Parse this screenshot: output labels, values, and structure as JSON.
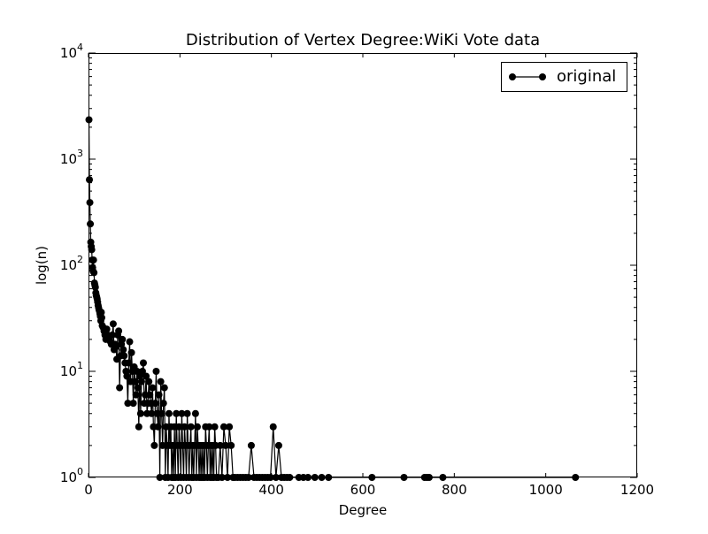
{
  "chart_data": {
    "type": "line",
    "title": "Distribution of Vertex Degree:WiKi Vote data",
    "xlabel": "Degree",
    "ylabel": "log(n)",
    "xlim": [
      0,
      1200
    ],
    "ylim": [
      1,
      10000
    ],
    "yscale": "log",
    "grid": false,
    "legend_position": "top-right",
    "x_ticks": [
      "0",
      "200",
      "400",
      "600",
      "800",
      "1000",
      "1200"
    ],
    "y_ticks": [
      {
        "base": "10",
        "exp": "0"
      },
      {
        "base": "10",
        "exp": "1"
      },
      {
        "base": "10",
        "exp": "2"
      },
      {
        "base": "10",
        "exp": "3"
      },
      {
        "base": "10",
        "exp": "4"
      }
    ],
    "series": [
      {
        "name": "original",
        "color": "#000000",
        "marker": "circle",
        "x": [
          1,
          2,
          3,
          4,
          5,
          6,
          7,
          8,
          9,
          10,
          11,
          12,
          13,
          14,
          15,
          16,
          17,
          18,
          19,
          20,
          21,
          22,
          23,
          24,
          25,
          26,
          27,
          28,
          29,
          30,
          32,
          34,
          36,
          38,
          40,
          42,
          44,
          46,
          48,
          50,
          52,
          54,
          56,
          58,
          60,
          62,
          64,
          66,
          68,
          70,
          72,
          74,
          76,
          78,
          80,
          82,
          84,
          86,
          88,
          90,
          92,
          94,
          96,
          98,
          100,
          102,
          104,
          106,
          108,
          110,
          112,
          114,
          116,
          118,
          120,
          122,
          124,
          126,
          128,
          130,
          132,
          134,
          136,
          138,
          140,
          142,
          144,
          146,
          148,
          150,
          152,
          154,
          156,
          158,
          160,
          162,
          164,
          166,
          168,
          170,
          172,
          174,
          176,
          178,
          180,
          182,
          184,
          186,
          188,
          190,
          192,
          194,
          196,
          198,
          200,
          202,
          204,
          206,
          208,
          210,
          212,
          214,
          216,
          218,
          220,
          222,
          224,
          226,
          228,
          230,
          232,
          234,
          236,
          238,
          240,
          242,
          244,
          246,
          248,
          250,
          252,
          254,
          256,
          258,
          260,
          262,
          264,
          266,
          268,
          270,
          272,
          274,
          276,
          278,
          280,
          284,
          288,
          292,
          296,
          300,
          304,
          308,
          312,
          316,
          320,
          326,
          332,
          338,
          344,
          350,
          356,
          362,
          368,
          374,
          380,
          386,
          392,
          398,
          404,
          410,
          416,
          422,
          428,
          434,
          440,
          460,
          470,
          480,
          495,
          510,
          525,
          620,
          690,
          735,
          740,
          745,
          775,
          1065
        ],
        "y": [
          2350,
          640,
          390,
          245,
          165,
          150,
          140,
          112,
          95,
          88,
          112,
          85,
          68,
          65,
          62,
          55,
          52,
          50,
          48,
          45,
          42,
          40,
          38,
          37,
          35,
          33,
          30,
          36,
          32,
          27,
          26,
          24,
          22,
          20,
          25,
          22,
          21,
          20,
          19,
          18,
          22,
          28,
          16,
          18,
          17,
          13,
          22,
          24,
          7,
          14,
          18,
          20,
          16,
          14,
          12,
          10,
          9,
          5,
          12,
          19,
          8,
          15,
          10,
          5,
          11,
          8,
          6,
          10,
          7,
          3,
          9,
          4,
          8,
          10,
          12,
          5,
          6,
          9,
          4,
          5,
          8,
          6,
          5,
          4,
          7,
          3,
          2,
          5,
          10,
          4,
          3,
          6,
          1,
          8,
          4,
          2,
          5,
          7,
          1,
          3,
          2,
          1,
          4,
          2,
          3,
          1,
          2,
          1,
          3,
          1,
          4,
          2,
          1,
          3,
          2,
          1,
          4,
          2,
          1,
          3,
          2,
          1,
          4,
          2,
          1,
          2,
          3,
          1,
          2,
          1,
          2,
          4,
          1,
          3,
          2,
          1,
          2,
          1,
          2,
          1,
          2,
          1,
          3,
          2,
          1,
          2,
          3,
          1,
          2,
          1,
          2,
          1,
          3,
          2,
          1,
          1,
          2,
          1,
          3,
          2,
          1,
          3,
          2,
          1,
          1,
          1,
          1,
          1,
          1,
          1,
          2,
          1,
          1,
          1,
          1,
          1,
          1,
          1,
          3,
          1,
          2,
          1,
          1,
          1,
          1,
          1,
          1,
          1,
          1,
          1,
          1,
          1,
          1,
          1,
          1,
          1,
          1,
          1
        ]
      }
    ]
  }
}
